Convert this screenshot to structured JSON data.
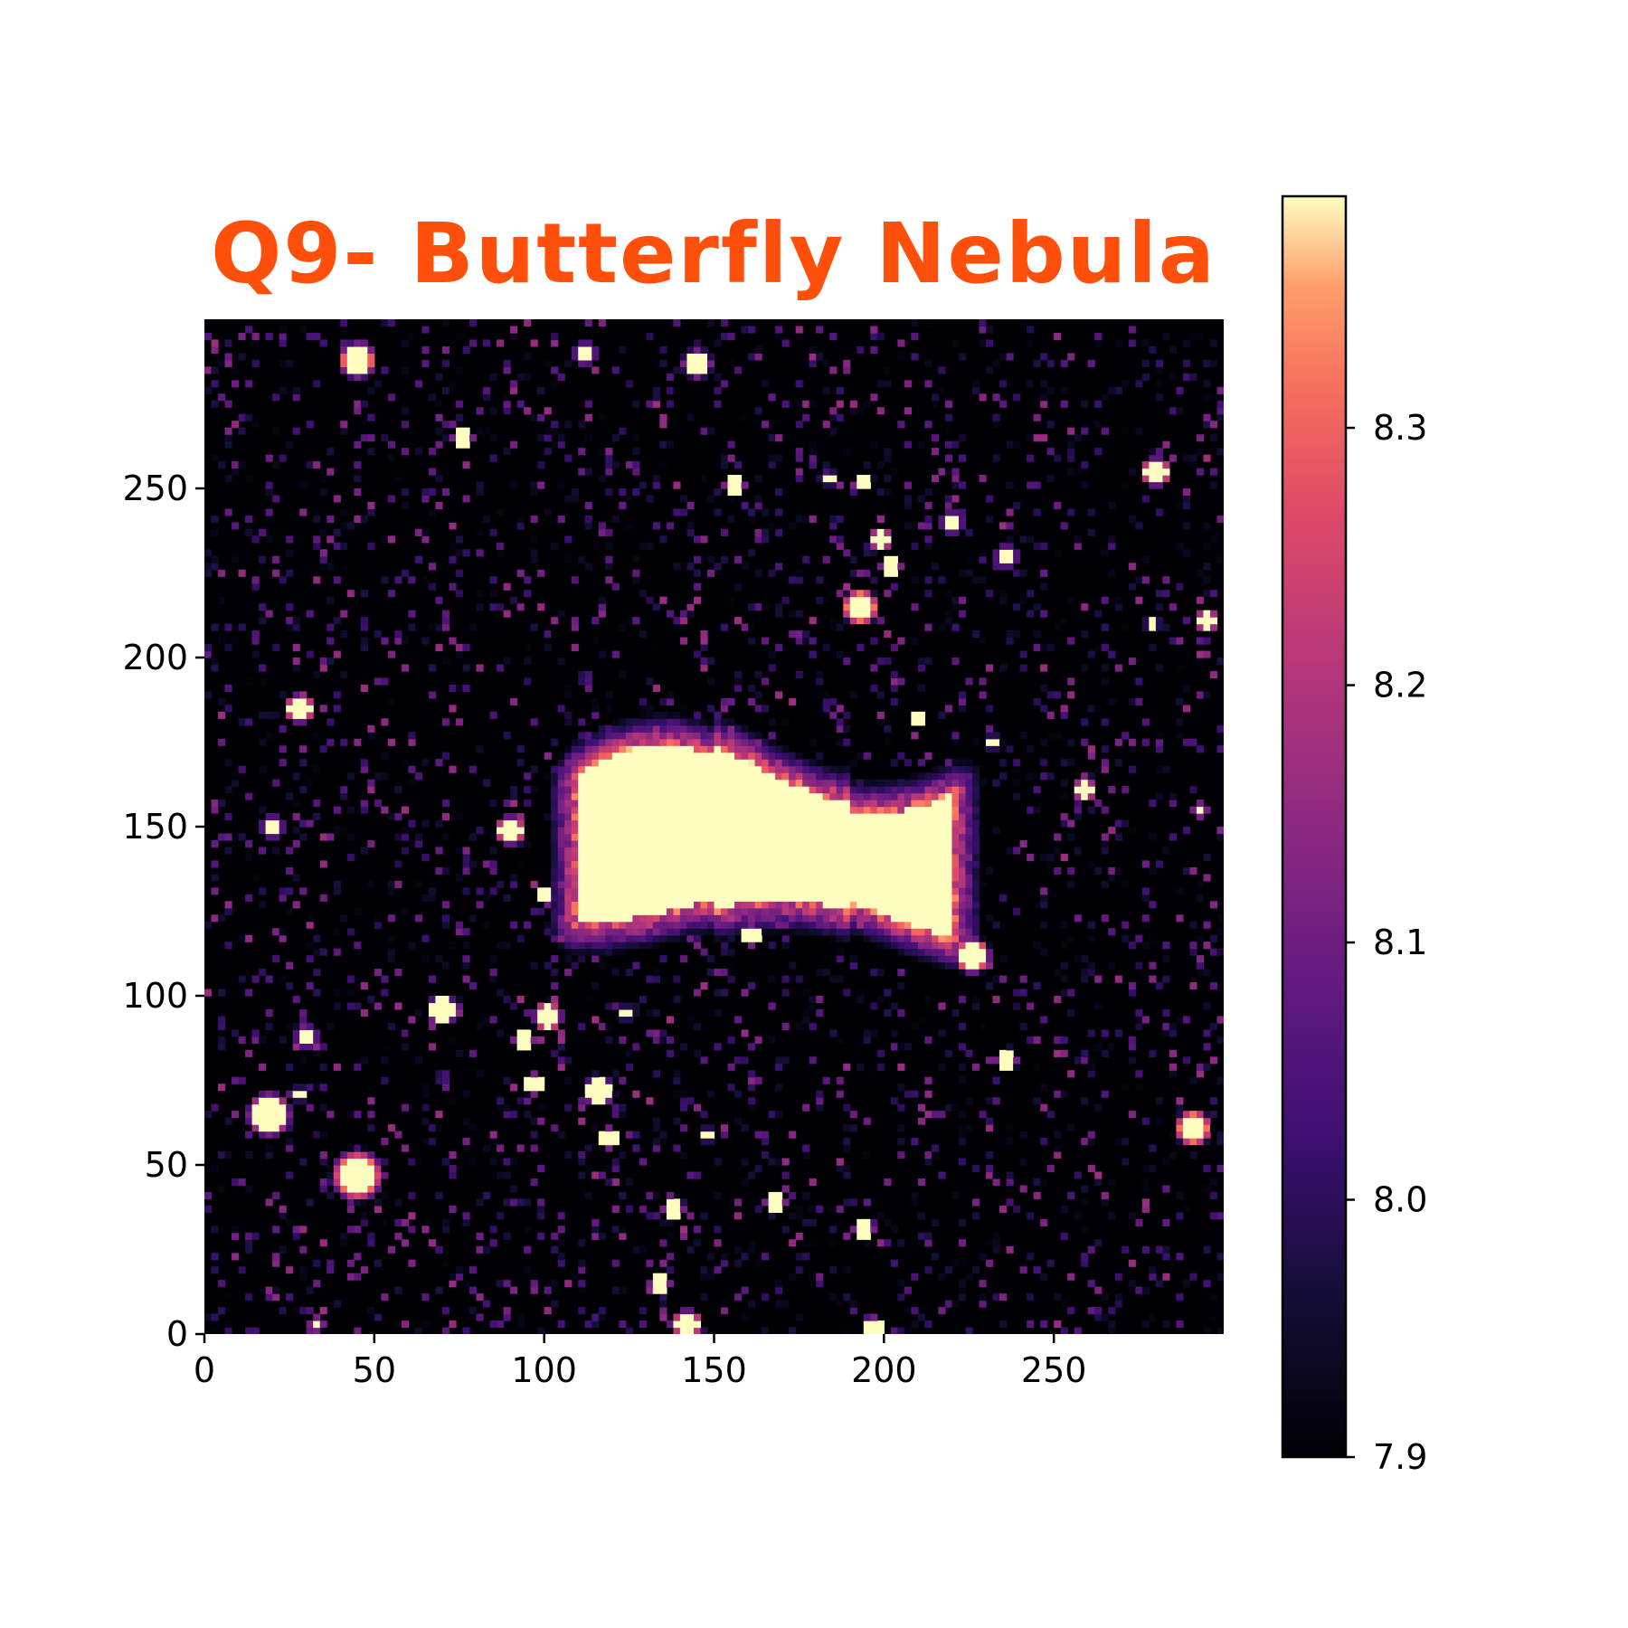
{
  "chart_data": {
    "type": "heatmap",
    "title": "Q9- Butterfly Nebula",
    "xlabel": "",
    "ylabel": "",
    "xlim": [
      0,
      300
    ],
    "ylim": [
      0,
      300
    ],
    "x_ticks": [
      "0",
      "50",
      "100",
      "150",
      "200",
      "250"
    ],
    "y_ticks": [
      "0",
      "50",
      "100",
      "150",
      "200",
      "250"
    ],
    "colormap": "magma",
    "colorbar": {
      "range": [
        7.9,
        8.39
      ],
      "ticks": [
        "7.9",
        "8.0",
        "8.1",
        "8.2",
        "8.3"
      ]
    },
    "nebula": {
      "center": [
        172,
        145
      ],
      "extent_x": [
        110,
        220
      ],
      "extent_y": [
        115,
        180
      ]
    },
    "stars": [
      [
        45,
        288,
        5
      ],
      [
        112,
        290,
        3
      ],
      [
        145,
        287,
        4
      ],
      [
        76,
        265,
        3
      ],
      [
        156,
        251,
        3
      ],
      [
        184,
        253,
        2
      ],
      [
        194,
        252,
        2
      ],
      [
        280,
        255,
        4
      ],
      [
        199,
        235,
        3
      ],
      [
        202,
        227,
        3
      ],
      [
        220,
        240,
        3
      ],
      [
        236,
        230,
        3
      ],
      [
        193,
        215,
        5
      ],
      [
        279,
        210,
        2
      ],
      [
        295,
        211,
        3
      ],
      [
        28,
        185,
        4
      ],
      [
        210,
        182,
        2
      ],
      [
        232,
        175,
        2
      ],
      [
        259,
        161,
        3
      ],
      [
        293,
        155,
        2
      ],
      [
        20,
        150,
        3
      ],
      [
        90,
        149,
        4
      ],
      [
        100,
        130,
        2
      ],
      [
        161,
        118,
        3
      ],
      [
        226,
        112,
        5
      ],
      [
        70,
        96,
        4
      ],
      [
        101,
        94,
        4
      ],
      [
        124,
        95,
        2
      ],
      [
        94,
        87,
        3
      ],
      [
        30,
        88,
        3
      ],
      [
        236,
        81,
        3
      ],
      [
        97,
        74,
        3
      ],
      [
        116,
        72,
        4
      ],
      [
        28,
        71,
        2
      ],
      [
        19,
        65,
        6
      ],
      [
        119,
        58,
        3
      ],
      [
        148,
        59,
        2
      ],
      [
        291,
        61,
        5
      ],
      [
        45,
        47,
        7
      ],
      [
        168,
        39,
        3
      ],
      [
        138,
        37,
        3
      ],
      [
        194,
        31,
        3
      ],
      [
        134,
        15,
        3
      ],
      [
        142,
        3,
        4
      ],
      [
        197,
        2,
        3
      ],
      [
        33,
        3,
        2
      ]
    ]
  }
}
